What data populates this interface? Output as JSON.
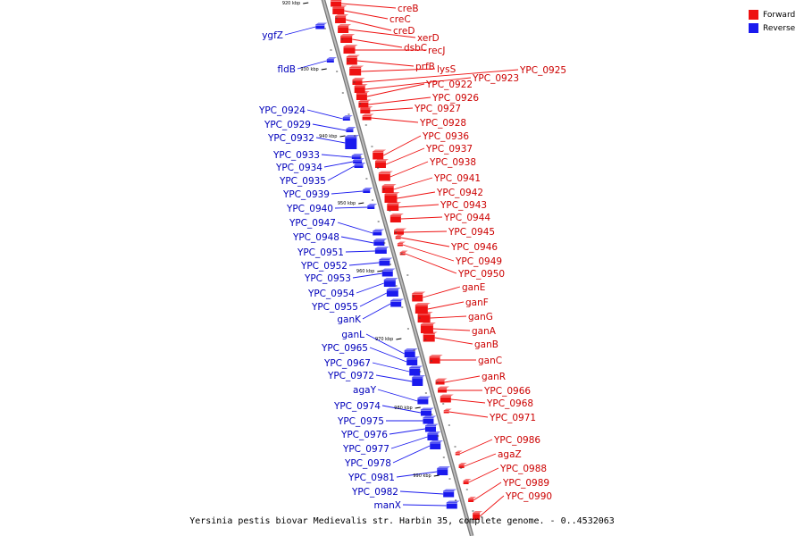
{
  "legend": {
    "forward": {
      "label": "Forward",
      "color": "#ee1111"
    },
    "reverse": {
      "label": "Reverse",
      "color": "#1a1aee"
    }
  },
  "caption": "Yersinia pestis biovar Medievalis str. Harbin 35, complete genome. - 0..4532063",
  "ticks": [
    "920 kbp",
    "930 kbp",
    "940 kbp",
    "950 kbp",
    "960 kbp",
    "970 kbp",
    "980 kbp",
    "990 kbp"
  ],
  "forward_genes": [
    "creB",
    "creC",
    "creD",
    "xerD",
    "dsbC",
    "recJ",
    "prfB",
    "lysS",
    "YPC_0925",
    "YPC_0923",
    "YPC_0922",
    "YPC_0926",
    "YPC_0927",
    "YPC_0928",
    "YPC_0936",
    "YPC_0937",
    "YPC_0938",
    "YPC_0941",
    "YPC_0942",
    "YPC_0943",
    "YPC_0944",
    "YPC_0945",
    "YPC_0946",
    "YPC_0949",
    "YPC_0950",
    "ganE",
    "ganF",
    "ganG",
    "ganA",
    "ganB",
    "ganC",
    "ganR",
    "YPC_0966",
    "YPC_0968",
    "YPC_0971",
    "YPC_0986",
    "agaZ",
    "YPC_0988",
    "YPC_0989",
    "YPC_0990"
  ],
  "reverse_genes": [
    "ygfZ",
    "fldB",
    "YPC_0924",
    "YPC_0929",
    "YPC_0932",
    "YPC_0933",
    "YPC_0934",
    "YPC_0935",
    "YPC_0939",
    "YPC_0940",
    "YPC_0947",
    "YPC_0948",
    "YPC_0951",
    "YPC_0952",
    "YPC_0953",
    "YPC_0954",
    "YPC_0955",
    "ganK",
    "ganL",
    "YPC_0965",
    "YPC_0967",
    "YPC_0972",
    "agaY",
    "YPC_0974",
    "YPC_0975",
    "YPC_0976",
    "YPC_0977",
    "YPC_0978",
    "YPC_0981",
    "YPC_0982",
    "manX"
  ]
}
